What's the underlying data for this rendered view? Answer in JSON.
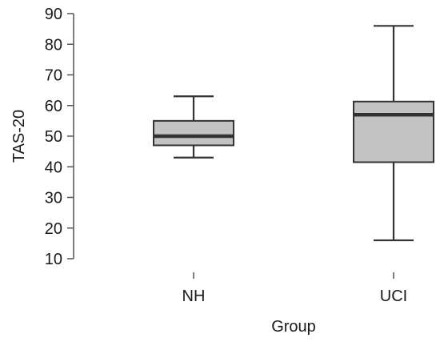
{
  "chart_data": {
    "type": "boxplot",
    "title": "",
    "xlabel": "Group",
    "ylabel": "TAS-20",
    "ylim": [
      10,
      90
    ],
    "yticks": [
      "10",
      "20",
      "30",
      "40",
      "50",
      "60",
      "70",
      "80",
      "90"
    ],
    "grid": false,
    "colors": {
      "box_fill": "#c3c3c3",
      "stroke": "#333333",
      "axis": "#555555"
    },
    "categories": [
      "NH",
      "UCI"
    ],
    "boxes": [
      {
        "name": "NH",
        "min": 43,
        "q1": 47,
        "median": 50,
        "q3": 55,
        "max": 63
      },
      {
        "name": "UCI",
        "min": 16,
        "q1": 41.5,
        "median": 57,
        "q3": 61.3,
        "max": 86
      }
    ]
  }
}
